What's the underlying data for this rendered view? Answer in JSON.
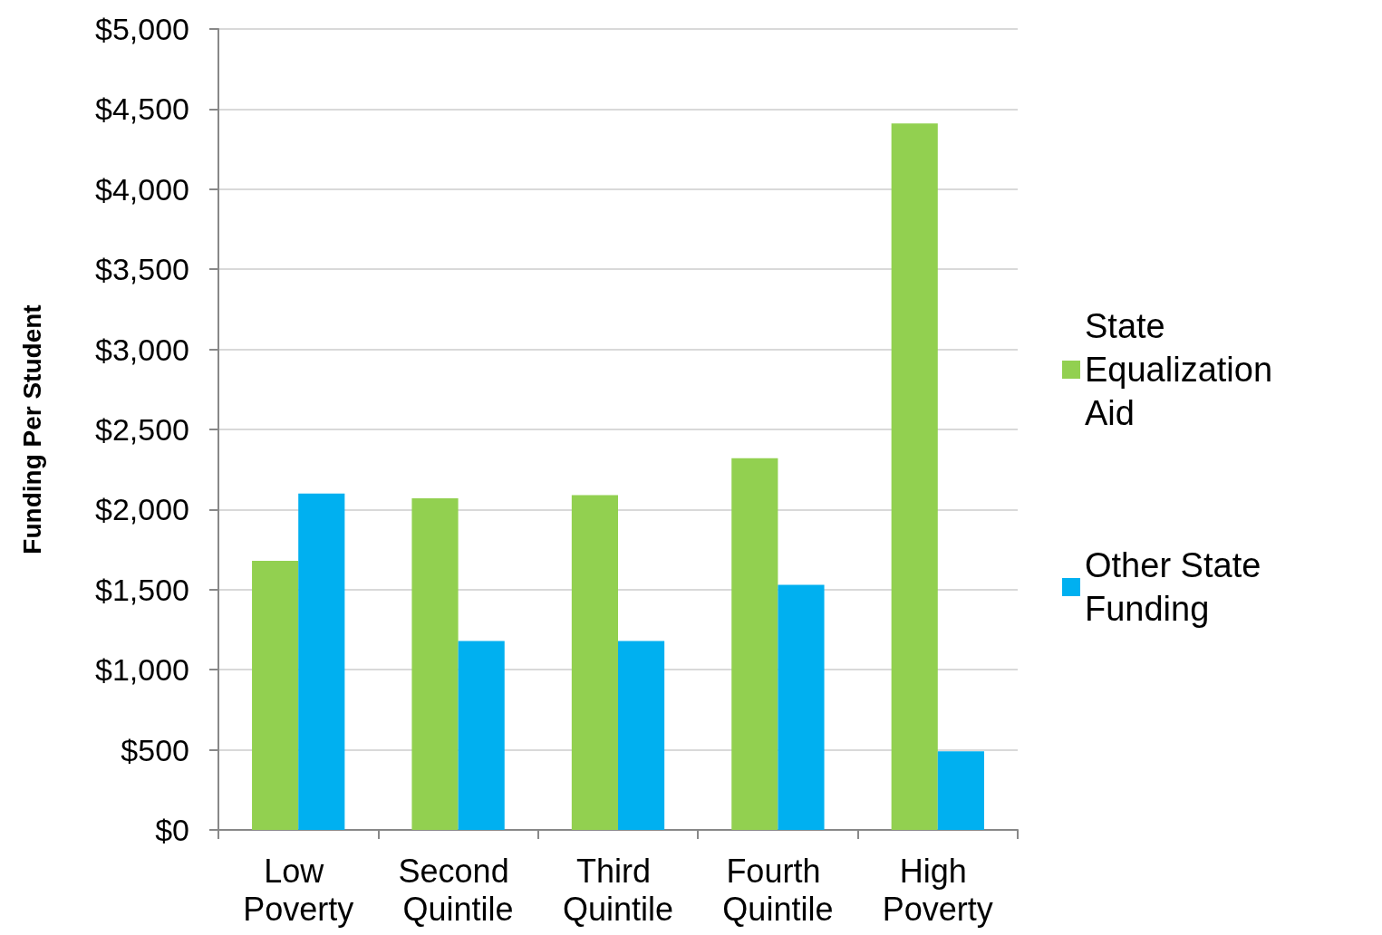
{
  "chart_data": {
    "type": "bar",
    "ylabel": "Funding Per Student",
    "categories": [
      "Low Poverty",
      "Second Quintile",
      "Third Quintile",
      "Fourth Quintile",
      "High Poverty"
    ],
    "series": [
      {
        "name": "State Equalization Aid",
        "color": "#92d050",
        "values": [
          1680,
          2070,
          2090,
          2320,
          4410
        ]
      },
      {
        "name": "Other State Funding",
        "color": "#00b0f0",
        "values": [
          2100,
          1180,
          1180,
          1530,
          490
        ]
      }
    ],
    "ylim": [
      0,
      5000
    ],
    "yticks": [
      {
        "value": 0,
        "label": "$0"
      },
      {
        "value": 500,
        "label": "$500"
      },
      {
        "value": 1000,
        "label": "$1,000"
      },
      {
        "value": 1500,
        "label": "$1,500"
      },
      {
        "value": 2000,
        "label": "$2,000"
      },
      {
        "value": 2500,
        "label": "$2,500"
      },
      {
        "value": 3000,
        "label": "$3,000"
      },
      {
        "value": 3500,
        "label": "$3,500"
      },
      {
        "value": 4000,
        "label": "$4,000"
      },
      {
        "value": 4500,
        "label": "$4,500"
      },
      {
        "value": 5000,
        "label": "$5,000"
      }
    ],
    "grid": "y",
    "legend": "right"
  }
}
